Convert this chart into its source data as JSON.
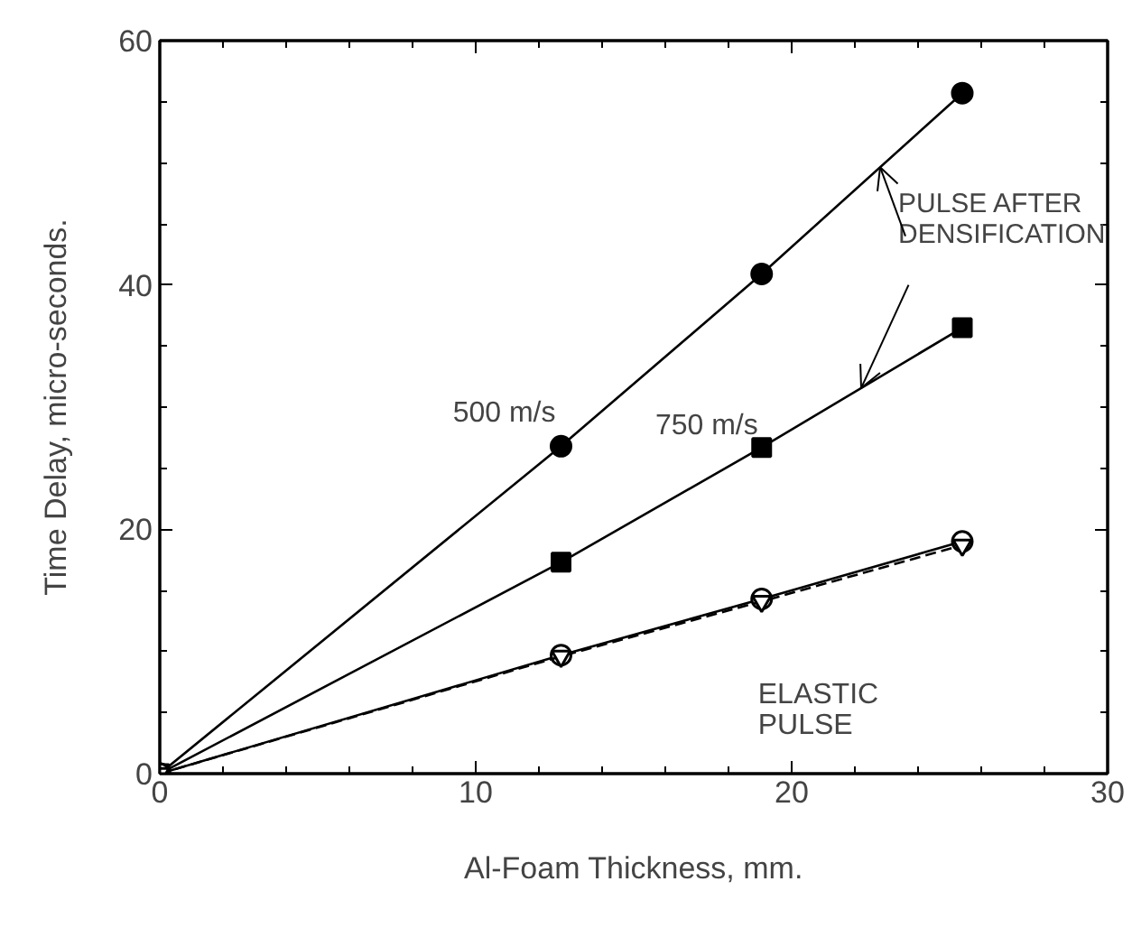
{
  "chart_data": {
    "type": "line",
    "xlabel": "Al-Foam Thickness, mm.",
    "ylabel": "Time Delay, micro-seconds.",
    "x": [
      0,
      12.7,
      19.05,
      25.4
    ],
    "series": [
      {
        "color": "#000000",
        "values": [
          0,
          26.8,
          40.9,
          55.7
        ],
        "marker": "circle",
        "line_style": "solid"
      },
      {
        "color": "#000000",
        "values": [
          0,
          17.3,
          26.7,
          36.5
        ],
        "marker": "square",
        "line_style": "solid"
      },
      {
        "color": "#000000",
        "values": [
          0,
          9.7,
          14.3,
          19.0
        ],
        "marker": "circle",
        "line_style": "solid"
      },
      {
        "color": "#000000",
        "values": [
          0,
          9.6,
          14.1,
          18.7
        ],
        "marker": "triangle",
        "line_style": "dashed"
      }
    ],
    "xlim": [
      0,
      30
    ],
    "xticks": [
      0,
      10,
      20,
      30
    ],
    "ylim": [
      0,
      60
    ],
    "yticks": [
      0,
      20,
      40,
      60
    ],
    "grid": false,
    "annotations": [
      {
        "text": "500 m/s",
        "x": 12.7,
        "y": 26.8
      },
      {
        "text": "750 m/s",
        "x": 19.05,
        "y": 26.7
      },
      {
        "text": "PULSE AFTER\nDENSIFICATION",
        "x": 22.8,
        "y": 49.5
      },
      {
        "text": "ELASTIC\nPULSE",
        "x": 19.05,
        "y": 14.3
      }
    ]
  }
}
